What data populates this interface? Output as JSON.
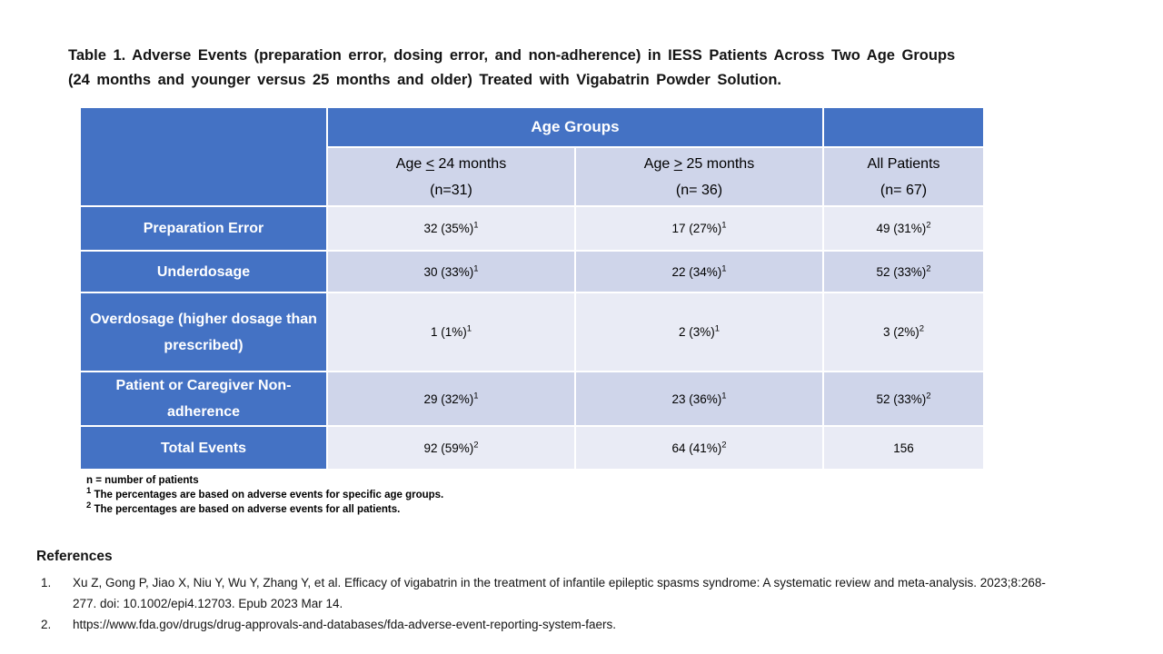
{
  "slide": {
    "title_line1": "Table 1. Adverse Events (preparation error, dosing error, and non-adherence) in IESS Patients Across Two Age Groups",
    "title_line2": "(24 months and younger versus 25 months and older) Treated with Vigabatrin Powder Solution."
  },
  "table": {
    "group_header": "Age Groups",
    "columns": [
      {
        "pre": "Age ",
        "cmp": "<",
        "post": " 24 months",
        "n": "(n=31)"
      },
      {
        "pre": "Age ",
        "cmp": ">",
        "post": " 25 months",
        "n": "(n= 36)"
      },
      {
        "pre": "All Patients",
        "cmp": "",
        "post": "",
        "n": "(n= 67)"
      }
    ],
    "rows": [
      {
        "label": "Preparation Error",
        "cells": [
          {
            "v": "32 (35%)",
            "s": "1"
          },
          {
            "v": "17 (27%)",
            "s": "1"
          },
          {
            "v": "49 (31%)",
            "s": "2"
          }
        ]
      },
      {
        "label": "Underdosage",
        "cells": [
          {
            "v": "30 (33%)",
            "s": "1"
          },
          {
            "v": "22 (34%)",
            "s": "1"
          },
          {
            "v": "52 (33%)",
            "s": "2"
          }
        ]
      },
      {
        "label": "Overdosage (higher dosage than prescribed)",
        "cells": [
          {
            "v": "1 (1%)",
            "s": "1"
          },
          {
            "v": "2 (3%)",
            "s": "1"
          },
          {
            "v": "3 (2%)",
            "s": "2"
          }
        ]
      },
      {
        "label": "Patient or Caregiver Non-adherence",
        "cells": [
          {
            "v": "29 (32%)",
            "s": "1"
          },
          {
            "v": "23 (36%)",
            "s": "1"
          },
          {
            "v": "52 (33%)",
            "s": "2"
          }
        ]
      },
      {
        "label": "Total Events",
        "cells": [
          {
            "v": "92 (59%)",
            "s": "2"
          },
          {
            "v": "64 (41%)",
            "s": "2"
          },
          {
            "v": "156",
            "s": ""
          }
        ]
      }
    ]
  },
  "footnotes": {
    "line1": "n = number of patients",
    "fn1_sup": "1",
    "fn1_text": "The percentages are based on adverse events for specific age groups.",
    "fn2_sup": "2",
    "fn2_text": "The percentages are based on adverse events for all patients."
  },
  "references": {
    "heading": "References",
    "items": [
      {
        "num": "1.",
        "text": "Xu Z, Gong P, Jiao X, Niu Y, Wu Y, Zhang Y, et al. Efficacy of vigabatrin in the treatment of infantile epileptic spasms syndrome: A systematic review and meta-analysis. 2023;8:268-277. doi: 10.1002/epi4.12703. Epub 2023 Mar 14."
      },
      {
        "num": "2.",
        "text": "https://www.fda.gov/drugs/drug-approvals-and-databases/fda-adverse-event-reporting-system-faers."
      }
    ]
  },
  "colors": {
    "header_blue": "#4472C4",
    "band_light": "#E9EBF5",
    "band_dark": "#CFD5EA"
  }
}
